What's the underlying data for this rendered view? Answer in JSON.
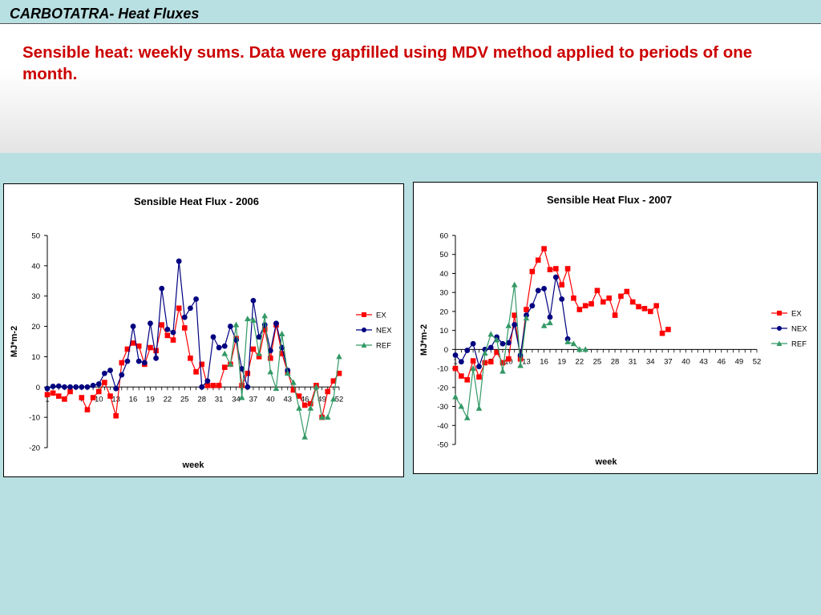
{
  "header": {
    "title": "CARBOTATRA- Heat Fluxes",
    "subtitle": "Sensible heat: weekly sums. Data were gapfilled using MDV method applied to periods of one month."
  },
  "colors": {
    "EX": "#ff0000",
    "NEX": "#000080",
    "REF": "#339966",
    "subtitle": "#cc0000"
  },
  "chart_data": [
    {
      "type": "line",
      "title": "Sensible Heat Flux - 2006",
      "xlabel": "week",
      "ylabel": "MJ*m-2",
      "ylim": [
        -20,
        50
      ],
      "yticks": [
        -20,
        -10,
        0,
        10,
        20,
        30,
        40,
        50
      ],
      "xlim": [
        1,
        52
      ],
      "xticks": [
        1,
        4,
        7,
        10,
        13,
        16,
        19,
        22,
        25,
        28,
        31,
        34,
        37,
        40,
        43,
        46,
        49,
        52
      ],
      "grid": false,
      "legend": "right",
      "series": [
        {
          "name": "EX",
          "marker": "square",
          "points": [
            [
              1,
              -2.5
            ],
            [
              2,
              -2
            ],
            [
              3,
              -3
            ],
            [
              4,
              -4
            ],
            [
              5,
              -1.5
            ],
            [
              7,
              -3.5
            ],
            [
              8,
              -7.5
            ],
            [
              9,
              -3.5
            ],
            [
              10,
              -1.5
            ],
            [
              11,
              1.5
            ],
            [
              12,
              -3
            ],
            [
              13,
              -9.5
            ],
            [
              14,
              8
            ],
            [
              15,
              12.5
            ],
            [
              16,
              14.5
            ],
            [
              17,
              13.5
            ],
            [
              18,
              7.5
            ],
            [
              19,
              13
            ],
            [
              20,
              12
            ],
            [
              21,
              20.5
            ],
            [
              22,
              17
            ],
            [
              23,
              15.5
            ],
            [
              24,
              26
            ],
            [
              25,
              19.5
            ],
            [
              26,
              9.5
            ],
            [
              27,
              5
            ],
            [
              28,
              7.5
            ],
            [
              29,
              0.5
            ],
            [
              30,
              0.5
            ],
            [
              31,
              0.5
            ],
            [
              32,
              6.5
            ],
            [
              33,
              7.5
            ],
            [
              34,
              16
            ],
            [
              35,
              0.5
            ],
            [
              36,
              4.5
            ],
            [
              37,
              12.5
            ],
            [
              38,
              10
            ],
            [
              39,
              19
            ],
            [
              40,
              9.5
            ],
            [
              41,
              20.5
            ],
            [
              42,
              11
            ],
            [
              43,
              5
            ],
            [
              44,
              -1
            ],
            [
              45,
              -3
            ],
            [
              46,
              -6
            ],
            [
              47,
              -5.5
            ],
            [
              48,
              0.5
            ],
            [
              49,
              -10
            ],
            [
              50,
              -1.5
            ],
            [
              51,
              2
            ],
            [
              52,
              4.5
            ]
          ]
        },
        {
          "name": "NEX",
          "marker": "circle",
          "points": [
            [
              1,
              -0.5
            ],
            [
              2,
              0.2
            ],
            [
              3,
              0.3
            ],
            [
              4,
              0
            ],
            [
              5,
              0
            ],
            [
              6,
              0
            ],
            [
              7,
              0
            ],
            [
              8,
              0
            ],
            [
              9,
              0.5
            ],
            [
              10,
              1
            ],
            [
              11,
              4.5
            ],
            [
              12,
              5.5
            ],
            [
              13,
              -0.5
            ],
            [
              14,
              4
            ],
            [
              15,
              8.5
            ],
            [
              16,
              20
            ],
            [
              17,
              8.5
            ],
            [
              18,
              8
            ],
            [
              19,
              21
            ],
            [
              20,
              9.5
            ],
            [
              21,
              32.5
            ],
            [
              22,
              19
            ],
            [
              23,
              18
            ],
            [
              24,
              41.5
            ],
            [
              25,
              23
            ],
            [
              26,
              26
            ],
            [
              27,
              29
            ],
            [
              28,
              0
            ],
            [
              29,
              2
            ],
            [
              30,
              16.5
            ],
            [
              31,
              13
            ],
            [
              32,
              13.5
            ],
            [
              33,
              20
            ],
            [
              34,
              15.5
            ],
            [
              35,
              6
            ],
            [
              36,
              0
            ],
            [
              37,
              28.5
            ],
            [
              38,
              16.5
            ],
            [
              39,
              20.5
            ],
            [
              40,
              12
            ],
            [
              41,
              21
            ],
            [
              42,
              13
            ],
            [
              43,
              5.5
            ]
          ]
        },
        {
          "name": "REF",
          "marker": "triangle",
          "points": [
            [
              32,
              11
            ],
            [
              33,
              7.5
            ],
            [
              34,
              20.5
            ],
            [
              35,
              -3.5
            ],
            [
              36,
              22.5
            ],
            [
              37,
              22
            ],
            [
              38,
              11
            ],
            [
              39,
              23.5
            ],
            [
              40,
              5
            ],
            [
              41,
              -0.5
            ],
            [
              42,
              17.5
            ],
            [
              43,
              4.5
            ],
            [
              44,
              1.5
            ],
            [
              45,
              -7
            ],
            [
              46,
              -16.5
            ],
            [
              47,
              -7
            ],
            [
              48,
              0
            ],
            [
              49,
              -10
            ],
            [
              50,
              -10
            ],
            [
              51,
              -4
            ],
            [
              52,
              10
            ]
          ]
        }
      ]
    },
    {
      "type": "line",
      "title": "Sensible Heat Flux - 2007",
      "xlabel": "week",
      "ylabel": "MJ*m-2",
      "ylim": [
        -50,
        60
      ],
      "yticks": [
        -50,
        -40,
        -30,
        -20,
        -10,
        0,
        10,
        20,
        30,
        40,
        50,
        60
      ],
      "xlim": [
        1,
        52
      ],
      "xticks": [
        1,
        4,
        7,
        10,
        13,
        16,
        19,
        22,
        25,
        28,
        31,
        34,
        37,
        40,
        43,
        46,
        49,
        52
      ],
      "grid": false,
      "legend": "right",
      "series": [
        {
          "name": "EX",
          "marker": "square",
          "points": [
            [
              1,
              -10
            ],
            [
              2,
              -14
            ],
            [
              3,
              -16
            ],
            [
              4,
              -6
            ],
            [
              5,
              -14.5
            ],
            [
              6,
              -7
            ],
            [
              7,
              -6.5
            ],
            [
              8,
              -1.5
            ],
            [
              9,
              -7
            ],
            [
              10,
              -5
            ],
            [
              11,
              18
            ],
            [
              12,
              -5
            ],
            [
              13,
              21
            ],
            [
              14,
              41
            ],
            [
              15,
              47
            ],
            [
              16,
              53
            ],
            [
              17,
              42
            ],
            [
              18,
              42.5
            ],
            [
              19,
              34
            ],
            [
              20,
              42.5
            ],
            [
              21,
              27
            ],
            [
              22,
              21
            ],
            [
              23,
              23
            ],
            [
              24,
              24
            ],
            [
              25,
              31
            ],
            [
              26,
              25
            ],
            [
              27,
              27
            ],
            [
              28,
              18
            ],
            [
              29,
              28
            ],
            [
              30,
              30.5
            ],
            [
              31,
              25
            ],
            [
              32,
              22.5
            ],
            [
              33,
              21.5
            ],
            [
              34,
              20
            ],
            [
              35,
              23
            ],
            [
              36,
              8.5
            ],
            [
              37,
              10.5
            ]
          ]
        },
        {
          "name": "NEX",
          "marker": "circle",
          "points": [
            [
              1,
              -3
            ],
            [
              2,
              -6.5
            ],
            [
              3,
              -0.5
            ],
            [
              4,
              3
            ],
            [
              5,
              -9
            ],
            [
              6,
              0
            ],
            [
              7,
              1
            ],
            [
              8,
              6.5
            ],
            [
              9,
              3
            ],
            [
              10,
              3.5
            ],
            [
              11,
              13
            ],
            [
              12,
              -3
            ],
            [
              13,
              18
            ],
            [
              14,
              23
            ],
            [
              15,
              31
            ],
            [
              16,
              32
            ],
            [
              17,
              17
            ],
            [
              18,
              38
            ],
            [
              19,
              26.5
            ],
            [
              20,
              5.5
            ]
          ]
        },
        {
          "name": "REF",
          "marker": "triangle",
          "points": [
            [
              1,
              -25
            ],
            [
              2,
              -30
            ],
            [
              3,
              -36
            ],
            [
              4,
              -10
            ],
            [
              5,
              -31
            ],
            [
              6,
              -2
            ],
            [
              7,
              8
            ],
            [
              8,
              5
            ],
            [
              9,
              -11.5
            ],
            [
              10,
              12.5
            ],
            [
              11,
              34
            ],
            [
              12,
              -8.5
            ],
            [
              13,
              16.5
            ],
            [
              16,
              12.5
            ],
            [
              17,
              14
            ],
            [
              20,
              4
            ],
            [
              21,
              3
            ],
            [
              22,
              0
            ],
            [
              23,
              0
            ]
          ]
        }
      ]
    }
  ]
}
